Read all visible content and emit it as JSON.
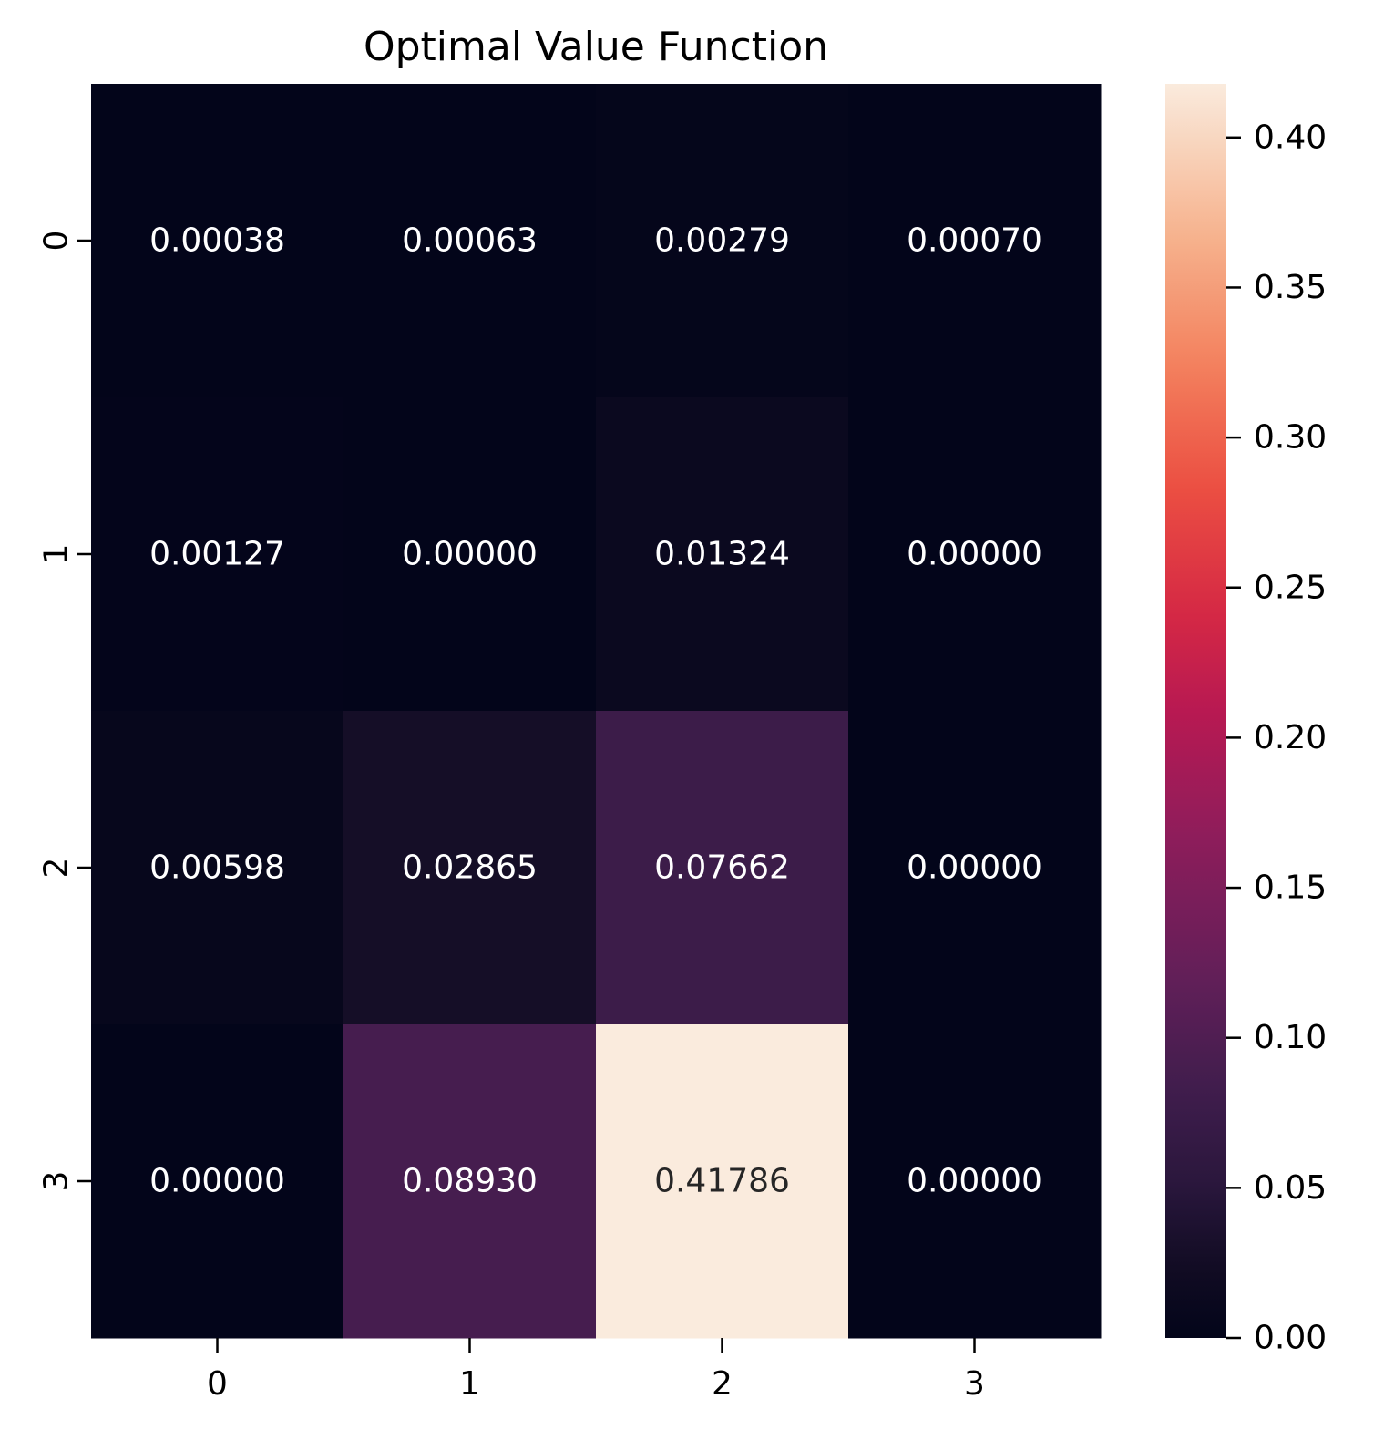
{
  "chart_data": {
    "type": "heatmap",
    "title": "Optimal Value Function",
    "xlabel": "",
    "ylabel": "",
    "x_categories": [
      "0",
      "1",
      "2",
      "3"
    ],
    "y_categories": [
      "0",
      "1",
      "2",
      "3"
    ],
    "values": [
      [
        0.00038,
        0.00063,
        0.00279,
        0.0007
      ],
      [
        0.00127,
        0.0,
        0.01324,
        0.0
      ],
      [
        0.00598,
        0.02865,
        0.07662,
        0.0
      ],
      [
        0.0,
        0.0893,
        0.41786,
        0.0
      ]
    ],
    "cell_labels": [
      [
        "0.00038",
        "0.00063",
        "0.00279",
        "0.00070"
      ],
      [
        "0.00127",
        "0.00000",
        "0.01324",
        "0.00000"
      ],
      [
        "0.00598",
        "0.02865",
        "0.07662",
        "0.00000"
      ],
      [
        "0.00000",
        "0.08930",
        "0.41786",
        "0.00000"
      ]
    ],
    "colorbar": {
      "min": 0.0,
      "max": 0.41786,
      "ticks": [
        0.0,
        0.05,
        0.1,
        0.15,
        0.2,
        0.25,
        0.3,
        0.35,
        0.4
      ],
      "tick_labels": [
        "0.00",
        "0.05",
        "0.10",
        "0.15",
        "0.20",
        "0.25",
        "0.30",
        "0.35",
        "0.40"
      ]
    },
    "colormap": "rocket",
    "label_colors": {
      "dark_text": "#262626",
      "light_text": "#ffffff"
    },
    "grid": false
  }
}
